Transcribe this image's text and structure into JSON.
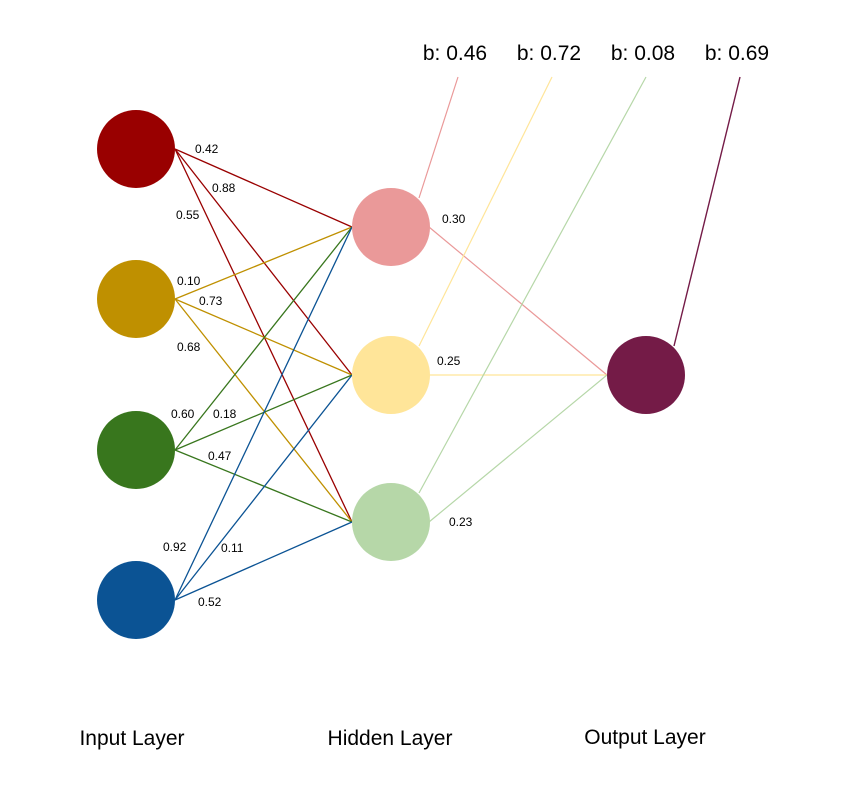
{
  "layers": {
    "input_label": "Input Layer",
    "hidden_label": "Hidden Layer",
    "output_label": "Output Layer"
  },
  "colors": {
    "input_1": "#990000",
    "input_2": "#bf9000",
    "input_3": "#38761d",
    "input_4": "#0b5394",
    "hidden_1": "#ea9999",
    "hidden_2": "#ffe599",
    "hidden_3": "#b6d7a8",
    "output_1": "#741b47"
  },
  "biases": [
    "b: 0.46",
    "b: 0.72",
    "b: 0.08",
    "b: 0.69"
  ],
  "weights": {
    "input_to_hidden": [
      [
        "0.42",
        "0.88",
        "0.55"
      ],
      [
        "0.10",
        "0.73",
        "0.68"
      ],
      [
        "0.60",
        "0.18",
        "0.47"
      ],
      [
        "0.92",
        "0.11",
        "0.52"
      ]
    ],
    "hidden_to_output": [
      "0.30",
      "0.25",
      "0.23"
    ]
  }
}
